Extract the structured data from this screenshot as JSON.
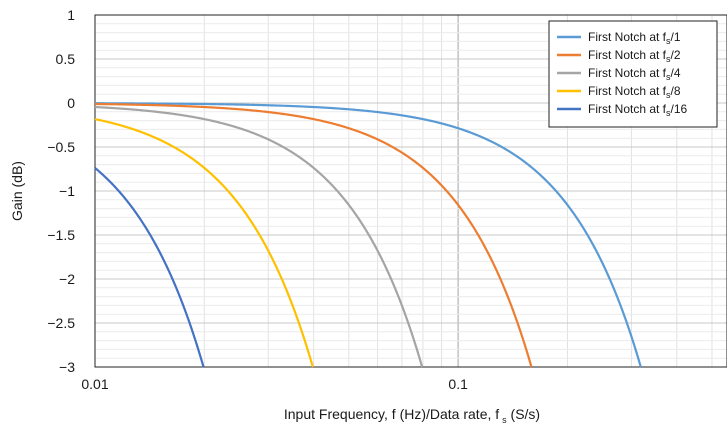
{
  "chart_data": {
    "type": "line",
    "xlabel": "Input Frequency, f (Hz)/Data rate, f",
    "xlabel_sub": "s",
    "xlabel_tail": " (S/s)",
    "ylabel": "Gain (dB)",
    "xscale": "log",
    "xlim": [
      0.01,
      0.55
    ],
    "ylim": [
      -3,
      1
    ],
    "xticks": [
      0.01,
      0.1
    ],
    "xtick_labels": [
      "0.01",
      "0.1"
    ],
    "yticks": [
      1,
      0.5,
      0,
      -0.5,
      -1,
      -1.5,
      -2,
      -2.5,
      -3
    ],
    "ytick_labels": [
      "1",
      "0.5",
      "0",
      "−0.5",
      "−1",
      "−1.5",
      "−2",
      "−2.5",
      "−3"
    ],
    "grid": true,
    "legend_position": "top-right",
    "series": [
      {
        "name": "First Notch at f",
        "sub": "s",
        "suffix": "/1",
        "color": "#5b9bd5",
        "notch": 1
      },
      {
        "name": "First Notch at f",
        "sub": "s",
        "suffix": "/2",
        "color": "#ed7d31",
        "notch": 0.5
      },
      {
        "name": "First Notch at f",
        "sub": "s",
        "suffix": "/4",
        "color": "#a5a5a5",
        "notch": 0.25
      },
      {
        "name": "First Notch at f",
        "sub": "s",
        "suffix": "/8",
        "color": "#ffc000",
        "notch": 0.125
      },
      {
        "name": "First Notch at f",
        "sub": "s",
        "suffix": "/16",
        "color": "#4472c4",
        "notch": 0.0625
      }
    ]
  }
}
